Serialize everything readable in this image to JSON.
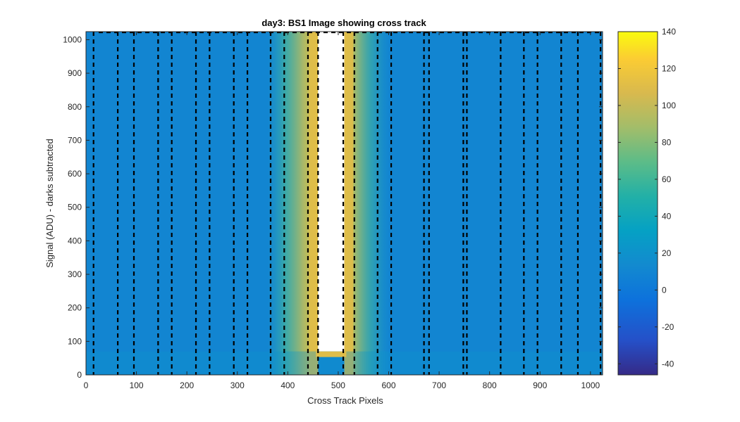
{
  "chart_data": {
    "type": "heatmap",
    "title": "day3: BS1  Image showing cross track",
    "xlabel": "Cross Track Pixels",
    "ylabel": "Signal (ADU) - darks subtracted",
    "xlim": [
      0,
      1024
    ],
    "ylim": [
      0,
      1024
    ],
    "xticks": [
      0,
      100,
      200,
      300,
      400,
      500,
      600,
      700,
      800,
      900,
      1000
    ],
    "yticks": [
      0,
      100,
      200,
      300,
      400,
      500,
      600,
      700,
      800,
      900,
      1000
    ],
    "grid": false,
    "colormap": "parula",
    "colorbar": {
      "limits": [
        -46,
        140
      ],
      "ticks": [
        -40,
        -20,
        0,
        20,
        40,
        60,
        80,
        100,
        120,
        140
      ],
      "placement": "right"
    },
    "background_level": 10,
    "saturated_region": {
      "x_start": 460,
      "x_end": 512,
      "y_start": 70,
      "y_end": 1024
    },
    "bright_region": {
      "x_start": 360,
      "x_end": 600,
      "peak_level": 110
    },
    "dashed_lines_x": [
      15,
      63,
      95,
      143,
      170,
      218,
      245,
      293,
      320,
      366,
      393,
      440,
      460,
      510,
      532,
      578,
      605,
      670,
      680,
      748,
      755,
      822,
      868,
      895,
      942,
      975,
      1020
    ],
    "dashed_line_color": "#000000"
  }
}
